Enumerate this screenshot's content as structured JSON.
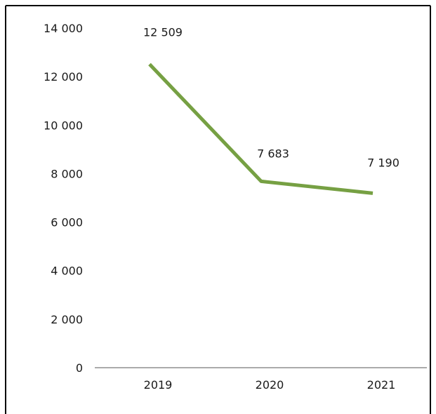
{
  "chart_data": {
    "type": "line",
    "categories": [
      "2019",
      "2020",
      "2021"
    ],
    "series": [
      {
        "values": [
          12509,
          7683,
          7190
        ],
        "color": "#76a043",
        "data_labels": [
          "12 509",
          "7 683",
          "7 190"
        ]
      }
    ],
    "yticks": [
      0,
      2000,
      4000,
      6000,
      8000,
      10000,
      12000,
      14000
    ],
    "ytick_labels": [
      "0",
      "2 000",
      "4 000",
      "6 000",
      "8 000",
      "10 000",
      "12 000",
      "14 000"
    ],
    "ylim": [
      0,
      14000
    ],
    "grid": false,
    "legend": "none"
  }
}
